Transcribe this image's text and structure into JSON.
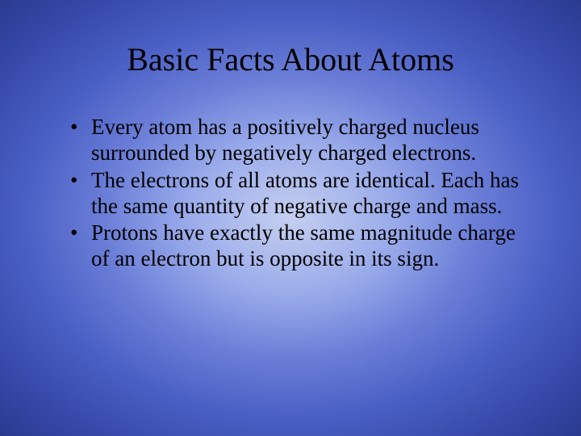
{
  "slide": {
    "title": "Basic Facts About Atoms",
    "bullets": [
      "Every atom has a positively charged nucleus surrounded by negatively charged electrons.",
      "The electrons of all atoms are identical. Each has the same quantity of negative charge and mass.",
      "Protons have exactly the same magnitude charge of an electron but is opposite in its sign."
    ],
    "background_gradient": {
      "type": "radial",
      "stops": [
        "#c5cff0",
        "#9aabea",
        "#6b7fd8",
        "#4a5fc4",
        "#3548a8",
        "#2a3a8f"
      ]
    },
    "text_color": "#000000",
    "title_fontsize": 40,
    "bullet_fontsize": 27,
    "font_family": "Times New Roman"
  }
}
